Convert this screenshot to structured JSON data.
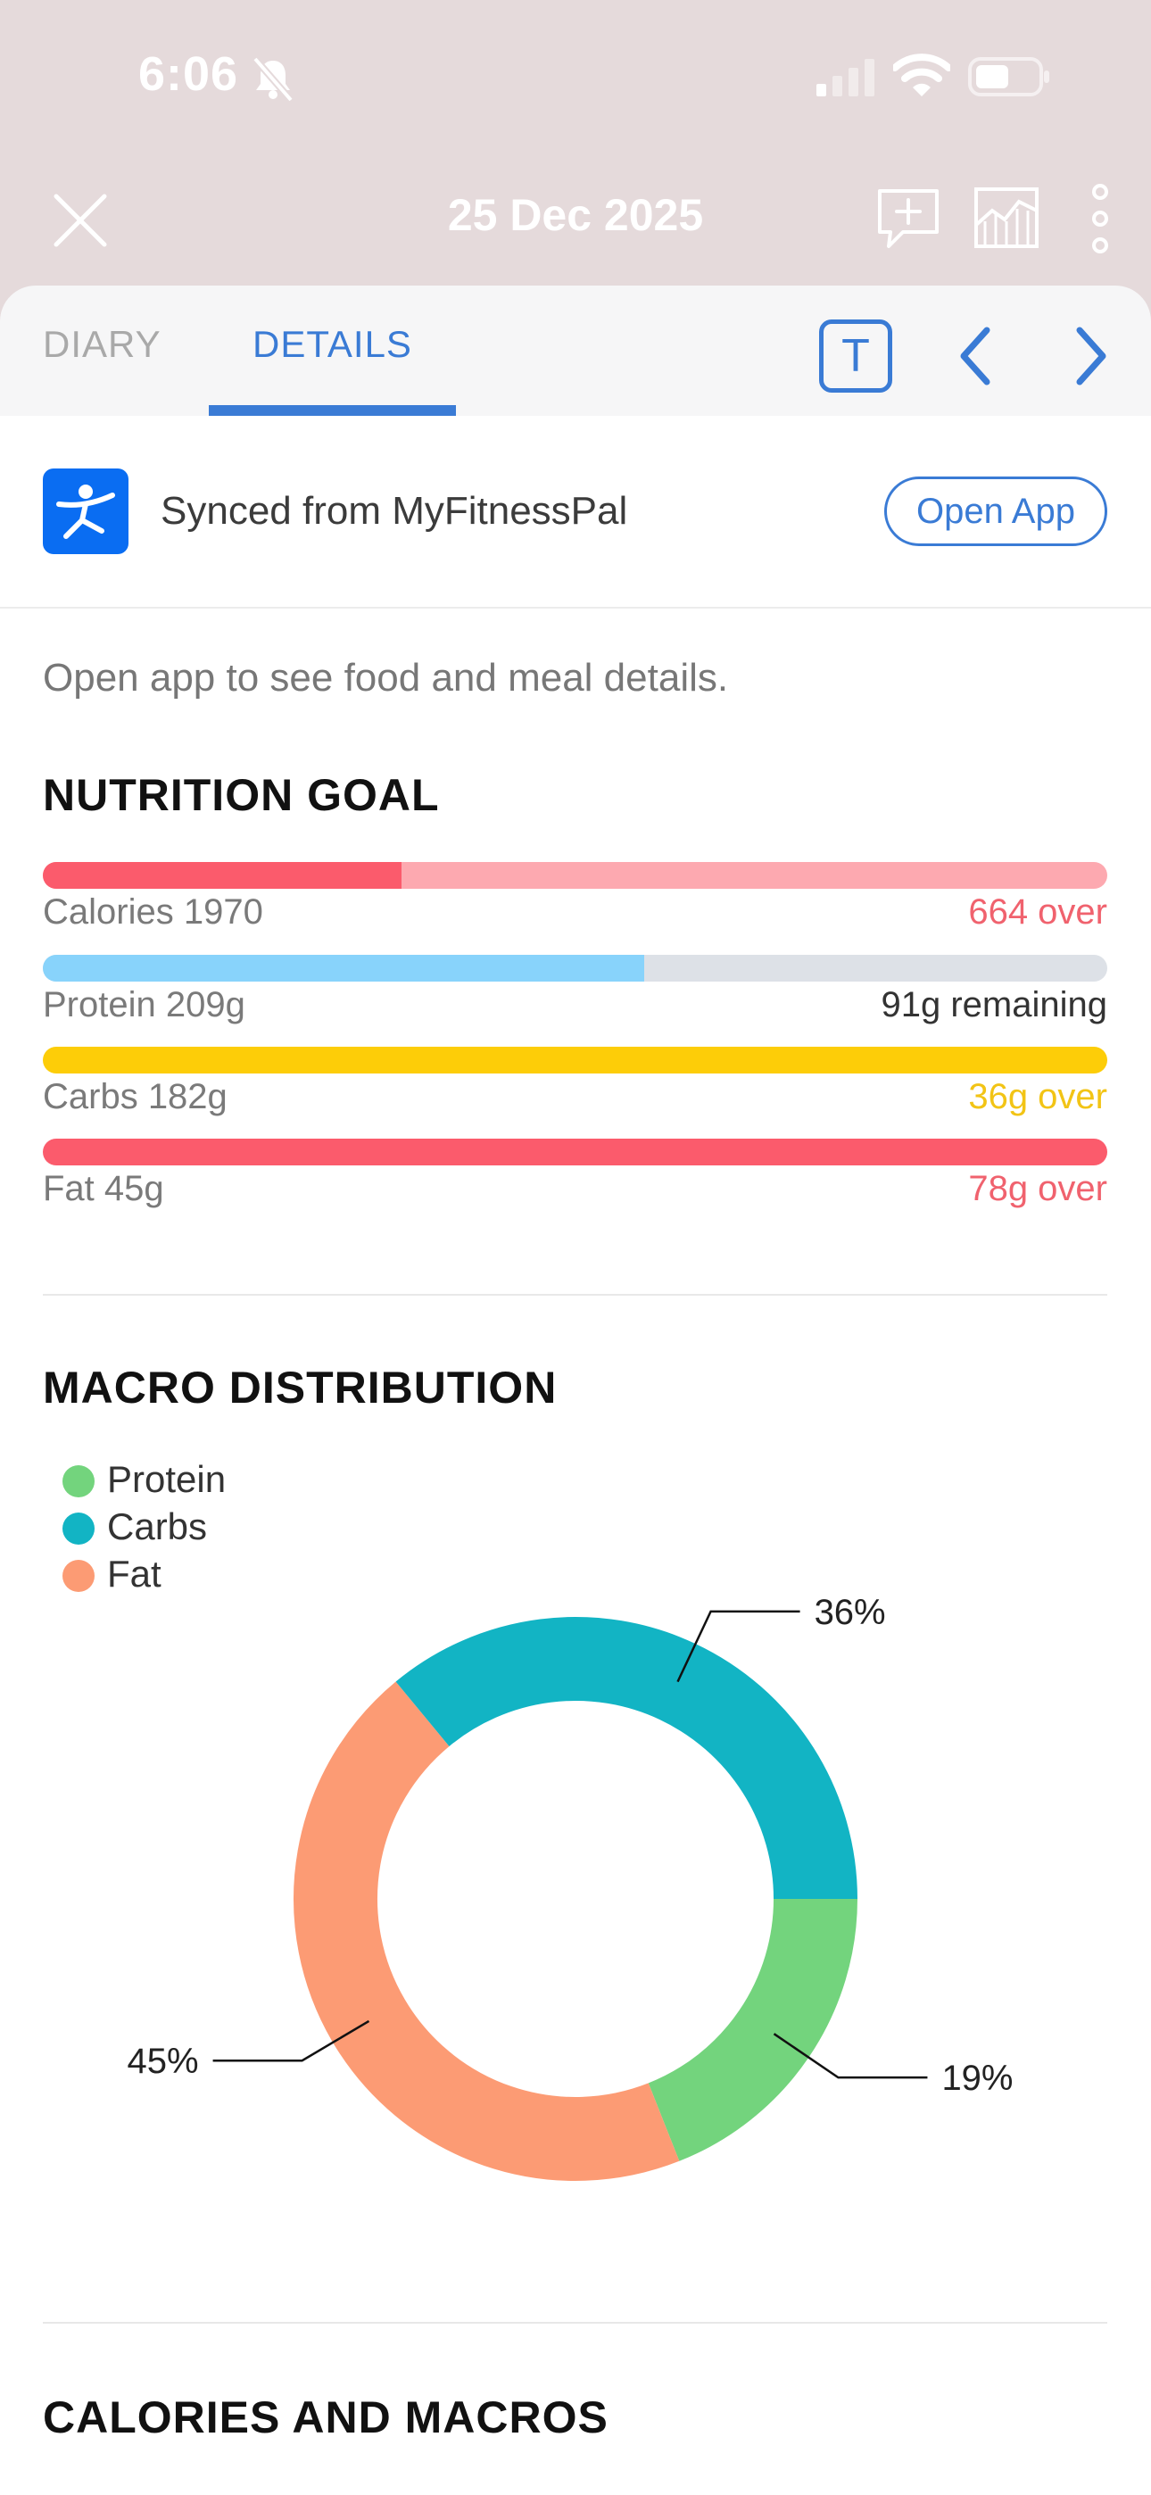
{
  "status_bar": {
    "time": "6:06"
  },
  "header": {
    "title": "25 Dec 2025"
  },
  "tabs": [
    {
      "label": "DIARY",
      "active": false
    },
    {
      "label": "DETAILS",
      "active": true
    }
  ],
  "toolbar": {
    "text_button_label": "T"
  },
  "sync": {
    "text": "Synced from MyFitnessPal",
    "button_label": "Open App"
  },
  "note": "Open app to see food and meal details.",
  "nutrition_goal": {
    "title": "NUTRITION GOAL",
    "items": [
      {
        "label": "Calories 1970",
        "status": "664 over",
        "progress": 0.337,
        "fill_color": "#fb5b6c",
        "track_color": "#fda9b0",
        "status_color": "#f0626e"
      },
      {
        "label": "Protein 209g",
        "status": "91g remaining",
        "progress": 0.565,
        "fill_color": "#88d3fb",
        "track_color": "#dde1e7",
        "status_color": "#333333"
      },
      {
        "label": "Carbs 182g",
        "status": "36g over",
        "progress": 1.0,
        "fill_color": "#fdcd08",
        "track_color": "#fdcd08",
        "status_color": "#f2c415"
      },
      {
        "label": "Fat 45g",
        "status": "78g over",
        "progress": 1.0,
        "fill_color": "#fb5b6c",
        "track_color": "#fb5b6c",
        "status_color": "#f0626e"
      }
    ]
  },
  "macro_distribution": {
    "title": "MACRO DISTRIBUTION"
  },
  "chart_data": {
    "type": "pie",
    "categories": [
      "Protein",
      "Carbs",
      "Fat"
    ],
    "values": [
      19,
      36,
      45
    ],
    "labels": [
      "19%",
      "36%",
      "45%"
    ],
    "colors": [
      "#73d47d",
      "#12b4c4",
      "#fc9b74"
    ],
    "legend_position": "top-left"
  },
  "calories_macros": {
    "title": "CALORIES AND MACROS"
  }
}
